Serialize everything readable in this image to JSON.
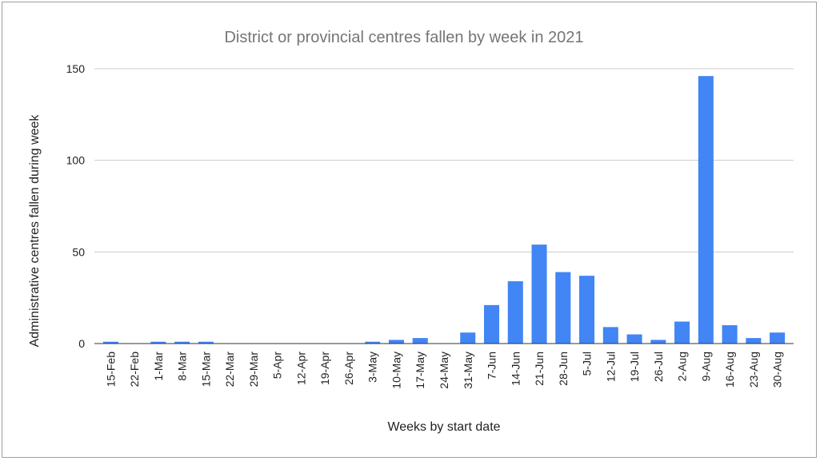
{
  "chart_data": {
    "type": "bar",
    "title": "District or provincial centres fallen by week in 2021",
    "xlabel": "Weeks by start date",
    "ylabel": "Administrative centres fallen during week",
    "ylim": [
      0,
      150
    ],
    "yticks": [
      0,
      50,
      100,
      150
    ],
    "grid": true,
    "legend": "none",
    "bar_color": "#4285f4",
    "categories": [
      "15-Feb",
      "22-Feb",
      "1-Mar",
      "8-Mar",
      "15-Mar",
      "22-Mar",
      "29-Mar",
      "5-Apr",
      "12-Apr",
      "19-Apr",
      "26-Apr",
      "3-May",
      "10-May",
      "17-May",
      "24-May",
      "31-May",
      "7-Jun",
      "14-Jun",
      "21-Jun",
      "28-Jun",
      "5-Jul",
      "12-Jul",
      "19-Jul",
      "26-Jul",
      "2-Aug",
      "9-Aug",
      "16-Aug",
      "23-Aug",
      "30-Aug"
    ],
    "values": [
      1,
      0,
      1,
      1,
      1,
      0,
      0,
      0,
      0,
      0,
      0,
      1,
      2,
      3,
      0,
      6,
      21,
      34,
      54,
      39,
      37,
      9,
      5,
      2,
      12,
      146,
      10,
      3,
      6
    ]
  }
}
